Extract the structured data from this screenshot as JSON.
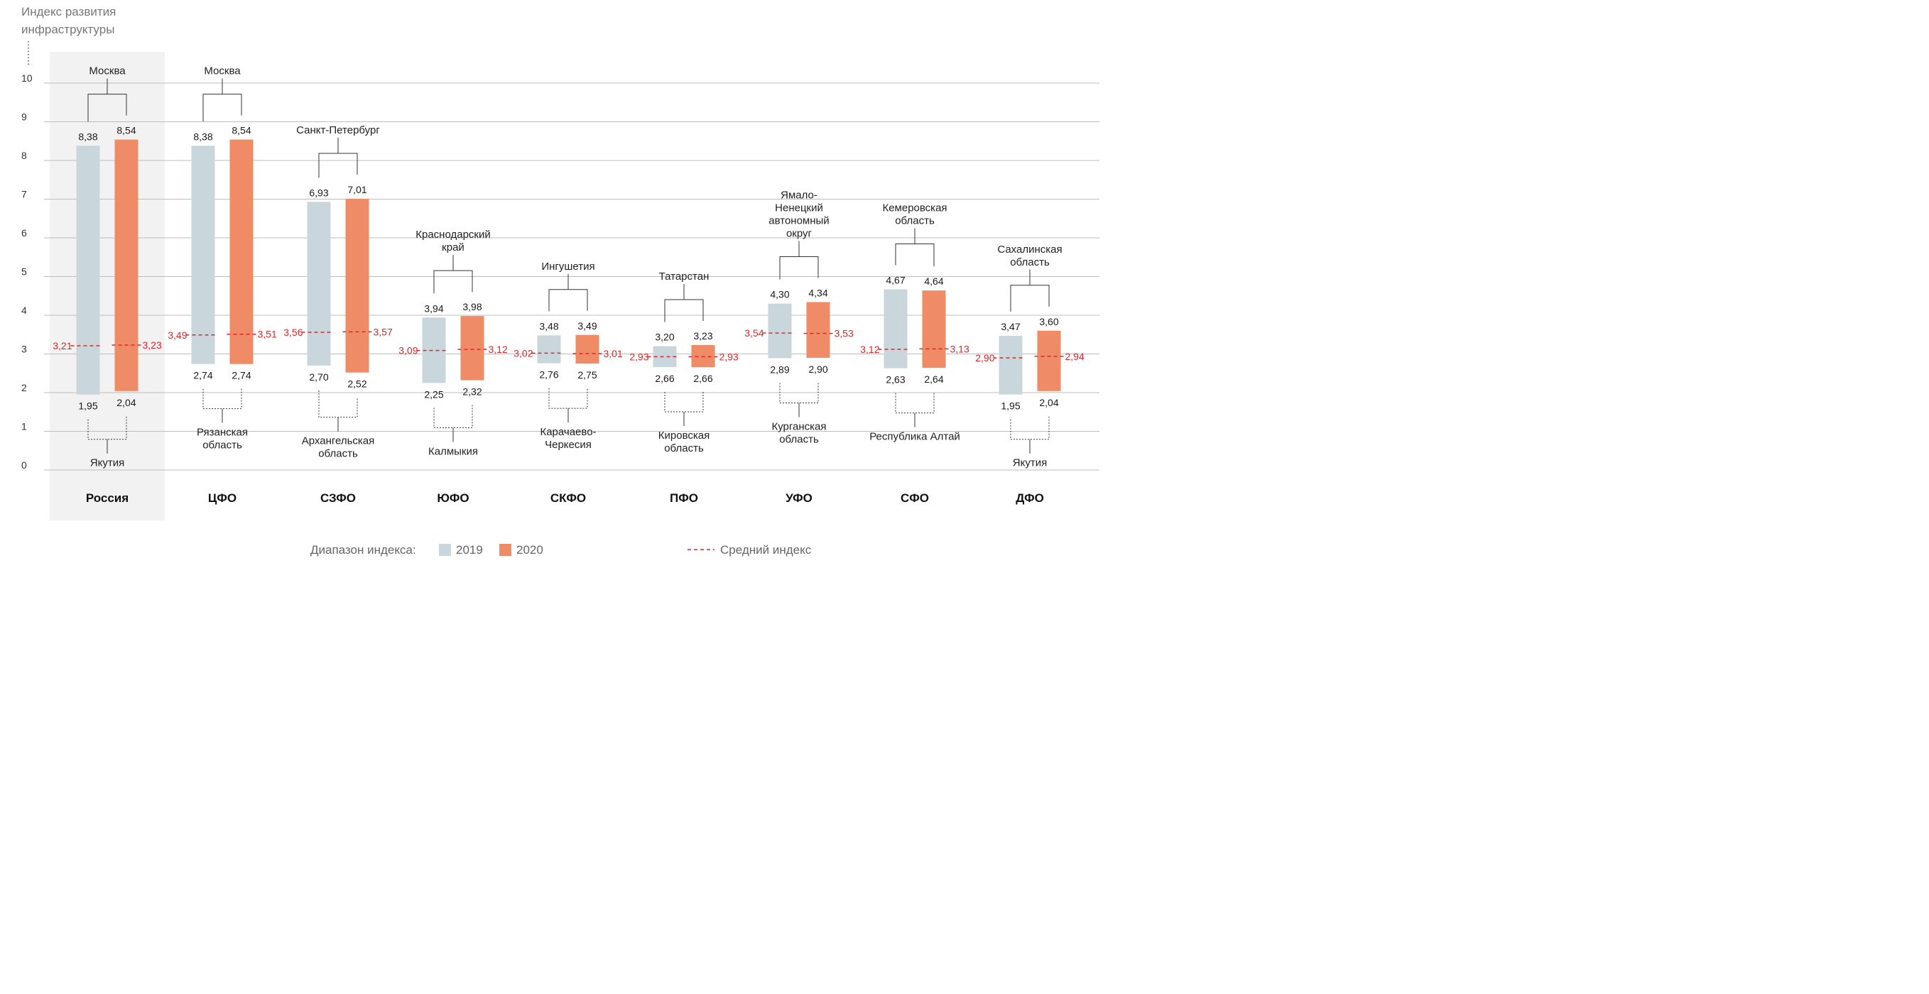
{
  "chart_data": {
    "type": "range-bar",
    "ylabel": "Индекс развития инфраструктуры",
    "ylim": [
      0,
      10
    ],
    "yticks": [
      0,
      1,
      2,
      3,
      4,
      5,
      6,
      7,
      8,
      9,
      10
    ],
    "grid": true,
    "legend": {
      "label": "Диапазон индекса:",
      "series": [
        {
          "name": "2019",
          "color": "#c9d6dc"
        },
        {
          "name": "2020",
          "color": "#ef8c67"
        }
      ],
      "average_label": "Средний индекс",
      "average_color": "#e0262a",
      "placement": "bottom"
    },
    "highlight_category": "Россия",
    "highlight_color": "#f2f2f2",
    "categories": [
      {
        "name": "Россия",
        "top_region": "Москва",
        "bottom_region": "Якутия",
        "y2019": {
          "min": 1.95,
          "max": 8.38,
          "avg": 3.21
        },
        "y2020": {
          "min": 2.04,
          "max": 8.54,
          "avg": 3.23
        }
      },
      {
        "name": "ЦФО",
        "top_region": "Москва",
        "bottom_region": "Рязанская\nобласть",
        "y2019": {
          "min": 2.74,
          "max": 8.38,
          "avg": 3.49
        },
        "y2020": {
          "min": 2.74,
          "max": 8.54,
          "avg": 3.51
        }
      },
      {
        "name": "СЗФО",
        "top_region": "Санкт-Петербург",
        "bottom_region": "Архангельская\nобласть",
        "y2019": {
          "min": 2.7,
          "max": 6.93,
          "avg": 3.56
        },
        "y2020": {
          "min": 2.52,
          "max": 7.01,
          "avg": 3.57
        }
      },
      {
        "name": "ЮФО",
        "top_region": "Краснодарский\nкрай",
        "bottom_region": "Калмыкия",
        "y2019": {
          "min": 2.25,
          "max": 3.94,
          "avg": 3.09
        },
        "y2020": {
          "min": 2.32,
          "max": 3.98,
          "avg": 3.12
        }
      },
      {
        "name": "СКФО",
        "top_region": "Ингушетия",
        "bottom_region": "Карачаево-\nЧеркесия",
        "y2019": {
          "min": 2.76,
          "max": 3.48,
          "avg": 3.02
        },
        "y2020": {
          "min": 2.75,
          "max": 3.49,
          "avg": 3.01
        }
      },
      {
        "name": "ПФО",
        "top_region": "Татарстан",
        "bottom_region": "Кировская\nобласть",
        "y2019": {
          "min": 2.66,
          "max": 3.2,
          "avg": 2.93
        },
        "y2020": {
          "min": 2.66,
          "max": 3.23,
          "avg": 2.93
        }
      },
      {
        "name": "УФО",
        "top_region": "Ямало-\nНенецкий\nавтономный\nокруг",
        "bottom_region": "Курганская\nобласть",
        "y2019": {
          "min": 2.89,
          "max": 4.3,
          "avg": 3.54
        },
        "y2020": {
          "min": 2.9,
          "max": 4.34,
          "avg": 3.53
        }
      },
      {
        "name": "СФО",
        "top_region": "Кемеровская\nобласть",
        "bottom_region": "Республика Алтай",
        "y2019": {
          "min": 2.63,
          "max": 4.67,
          "avg": 3.12
        },
        "y2020": {
          "min": 2.64,
          "max": 4.64,
          "avg": 3.13
        }
      },
      {
        "name": "ДФО",
        "top_region": "Сахалинская\nобласть",
        "bottom_region": "Якутия",
        "y2019": {
          "min": 1.95,
          "max": 3.47,
          "avg": 2.9
        },
        "y2020": {
          "min": 2.04,
          "max": 3.6,
          "avg": 2.94
        }
      }
    ]
  }
}
